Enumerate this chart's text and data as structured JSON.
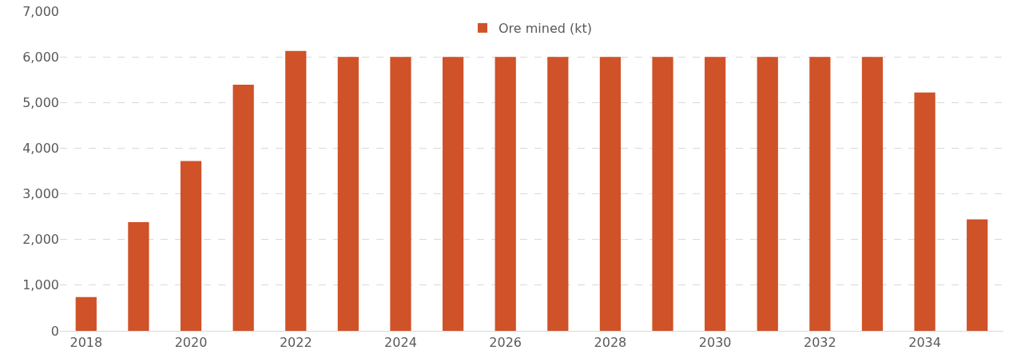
{
  "chart_data": {
    "type": "bar",
    "categories": [
      "2018",
      null,
      "2020",
      null,
      "2022",
      null,
      "2024",
      null,
      "2026",
      null,
      "2028",
      null,
      "2030",
      null,
      "2032",
      null,
      "2034",
      null
    ],
    "series": [
      {
        "name": "Ore mined (kt)",
        "color": "#cf5228",
        "values": [
          740,
          2380,
          3720,
          5390,
          6130,
          6000,
          6000,
          6000,
          6000,
          6000,
          6000,
          6000,
          6000,
          6000,
          6000,
          6000,
          5220,
          2440
        ]
      }
    ],
    "ylim": [
      0,
      7000
    ],
    "yticks": [
      {
        "value": 0,
        "label": "0"
      },
      {
        "value": 1000,
        "label": "1,000"
      },
      {
        "value": 2000,
        "label": "2,000"
      },
      {
        "value": 3000,
        "label": "3,000"
      },
      {
        "value": 4000,
        "label": "4,000"
      },
      {
        "value": 5000,
        "label": "5,000"
      },
      {
        "value": 6000,
        "label": "6,000"
      },
      {
        "value": 7000,
        "label": "7,000"
      }
    ],
    "grid": "y",
    "legend": "top"
  }
}
